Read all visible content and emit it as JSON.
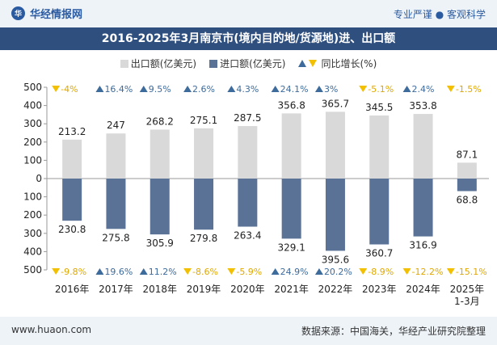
{
  "header": {
    "brand": "华经情报网",
    "logo_text": "华",
    "tagline": "专业严谨 ● 客观科学"
  },
  "title": "2016-2025年3月南京市(境内目的地/货源地)进、出口额",
  "legend": {
    "export": "出口额(亿美元)",
    "import": "进口额(亿美元)",
    "growth": "同比增长(%)"
  },
  "footer": {
    "site": "www.huaon.com",
    "source": "数据来源：中国海关，华经产业研究院整理"
  },
  "colors": {
    "export": "#d9d9d9",
    "import": "#5b7297",
    "up": "#3d6b9c",
    "down": "#f2c000",
    "down_text": "#e0a800",
    "up_text": "#3d6b9c"
  },
  "chart_data": {
    "type": "bar",
    "categories": [
      "2016年",
      "2017年",
      "2018年",
      "2019年",
      "2020年",
      "2021年",
      "2022年",
      "2023年",
      "2024年",
      "2025年\n1-3月"
    ],
    "series": [
      {
        "name": "出口额(亿美元)",
        "values": [
          213.2,
          247,
          268.2,
          275.1,
          287.5,
          356.8,
          365.7,
          345.5,
          353.8,
          87.1
        ]
      },
      {
        "name": "进口额(亿美元)",
        "values": [
          230.8,
          275.8,
          305.9,
          279.8,
          263.4,
          329.1,
          395.6,
          360.7,
          316.9,
          68.8
        ]
      }
    ],
    "export_growth": [
      "-4%",
      "16.4%",
      "9.5%",
      "2.6%",
      "4.3%",
      "24.1%",
      "3%",
      "-5.1%",
      "2.4%",
      "-1.5%"
    ],
    "import_growth": [
      "-9.8%",
      "19.6%",
      "11.2%",
      "-8.6%",
      "-5.9%",
      "24.9%",
      "20.2%",
      "-8.9%",
      "-12.2%",
      "-15.1%"
    ],
    "y_tick_labels": [
      "500",
      "400",
      "300",
      "200",
      "100",
      "0",
      "100",
      "200",
      "300",
      "400",
      "500"
    ],
    "y_ticks": [
      500,
      400,
      300,
      200,
      100,
      0,
      -100,
      -200,
      -300,
      -400,
      -500
    ],
    "ylim": [
      -500,
      500
    ],
    "grid": false
  }
}
